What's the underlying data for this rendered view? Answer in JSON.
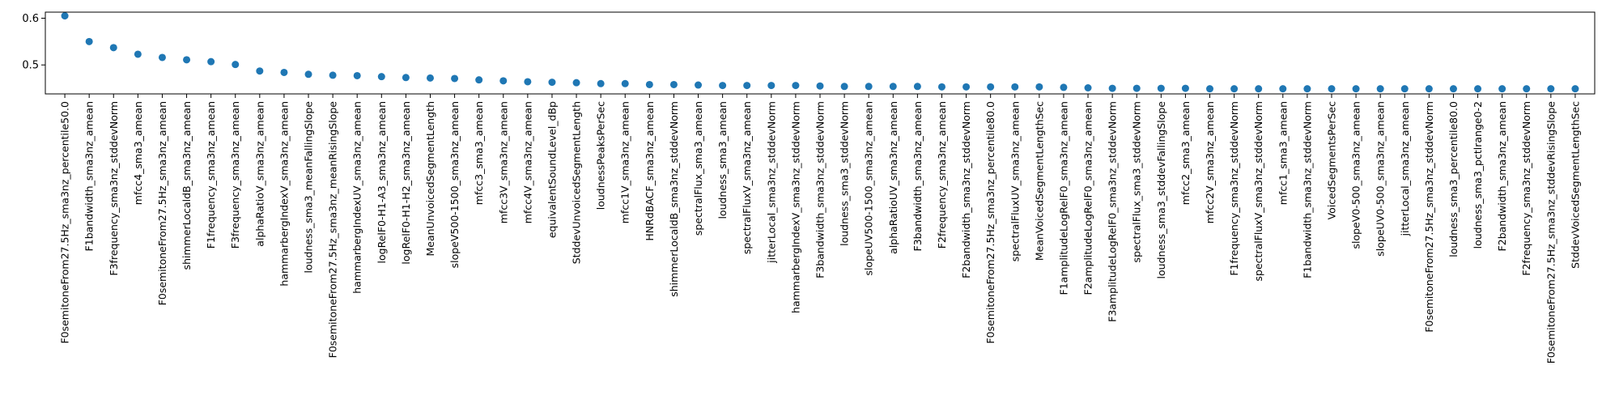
{
  "chart_data": {
    "type": "scatter",
    "title": "",
    "xlabel": "",
    "ylabel": "",
    "ylim": [
      0.438,
      0.613
    ],
    "yticks": [
      0.5,
      0.6
    ],
    "ytick_labels": [
      "0.5",
      "0.6"
    ],
    "grid": false,
    "legend": "none",
    "marker_color": "#1f77b4",
    "categories": [
      "F0semitoneFrom27.5Hz_sma3nz_percentile50.0",
      "F1bandwidth_sma3nz_amean",
      "F3frequency_sma3nz_stddevNorm",
      "mfcc4_sma3_amean",
      "F0semitoneFrom27.5Hz_sma3nz_amean",
      "shimmerLocaldB_sma3nz_amean",
      "F1frequency_sma3nz_amean",
      "F3frequency_sma3nz_amean",
      "alphaRatioV_sma3nz_amean",
      "hammarbergIndexV_sma3nz_amean",
      "loudness_sma3_meanFallingSlope",
      "F0semitoneFrom27.5Hz_sma3nz_meanRisingSlope",
      "hammarbergIndexUV_sma3nz_amean",
      "logRelF0-H1-A3_sma3nz_amean",
      "logRelF0-H1-H2_sma3nz_amean",
      "MeanUnvoicedSegmentLength",
      "slopeV500-1500_sma3nz_amean",
      "mfcc3_sma3_amean",
      "mfcc3V_sma3nz_amean",
      "mfcc4V_sma3nz_amean",
      "equivalentSoundLevel_dBp",
      "StddevUnvoicedSegmentLength",
      "loudnessPeaksPerSec",
      "mfcc1V_sma3nz_amean",
      "HNRdBACF_sma3nz_amean",
      "shimmerLocaldB_sma3nz_stddevNorm",
      "spectralFlux_sma3_amean",
      "loudness_sma3_amean",
      "spectralFluxV_sma3nz_amean",
      "jitterLocal_sma3nz_stddevNorm",
      "hammarbergIndexV_sma3nz_stddevNorm",
      "F3bandwidth_sma3nz_stddevNorm",
      "loudness_sma3_stddevNorm",
      "slopeUV500-1500_sma3nz_amean",
      "alphaRatioUV_sma3nz_amean",
      "F3bandwidth_sma3nz_amean",
      "F2frequency_sma3nz_amean",
      "F2bandwidth_sma3nz_stddevNorm",
      "F0semitoneFrom27.5Hz_sma3nz_percentile80.0",
      "spectralFluxUV_sma3nz_amean",
      "MeanVoicedSegmentLengthSec",
      "F1amplitudeLogRelF0_sma3nz_amean",
      "F2amplitudeLogRelF0_sma3nz_amean",
      "F3amplitudeLogRelF0_sma3nz_stddevNorm",
      "spectralFlux_sma3_stddevNorm",
      "loudness_sma3_stddevFallingSlope",
      "mfcc2_sma3_amean",
      "mfcc2V_sma3nz_amean",
      "F1frequency_sma3nz_stddevNorm",
      "spectralFluxV_sma3nz_stddevNorm",
      "mfcc1_sma3_amean",
      "F1bandwidth_sma3nz_stddevNorm",
      "VoicedSegmentsPerSec",
      "slopeV0-500_sma3nz_amean",
      "slopeUV0-500_sma3nz_amean",
      "jitterLocal_sma3nz_amean",
      "F0semitoneFrom27.5Hz_sma3nz_stddevNorm",
      "loudness_sma3_percentile80.0",
      "loudness_sma3_pctlrange0-2",
      "F2bandwidth_sma3nz_amean",
      "F2frequency_sma3nz_stddevNorm",
      "F0semitoneFrom27.5Hz_sma3nz_stddevRisingSlope",
      "StddevVoicedSegmentLengthSec"
    ],
    "values": [
      0.605,
      0.55,
      0.537,
      0.523,
      0.516,
      0.511,
      0.507,
      0.501,
      0.487,
      0.484,
      0.48,
      0.478,
      0.477,
      0.475,
      0.473,
      0.472,
      0.471,
      0.468,
      0.466,
      0.464,
      0.463,
      0.462,
      0.46,
      0.46,
      0.458,
      0.458,
      0.457,
      0.456,
      0.456,
      0.456,
      0.456,
      0.455,
      0.454,
      0.454,
      0.454,
      0.454,
      0.453,
      0.453,
      0.453,
      0.453,
      0.453,
      0.452,
      0.451,
      0.45,
      0.45,
      0.45,
      0.45,
      0.449,
      0.449,
      0.449,
      0.449,
      0.449,
      0.449,
      0.449,
      0.449,
      0.449,
      0.449,
      0.449,
      0.449,
      0.449,
      0.449,
      0.449,
      0.449
    ]
  }
}
